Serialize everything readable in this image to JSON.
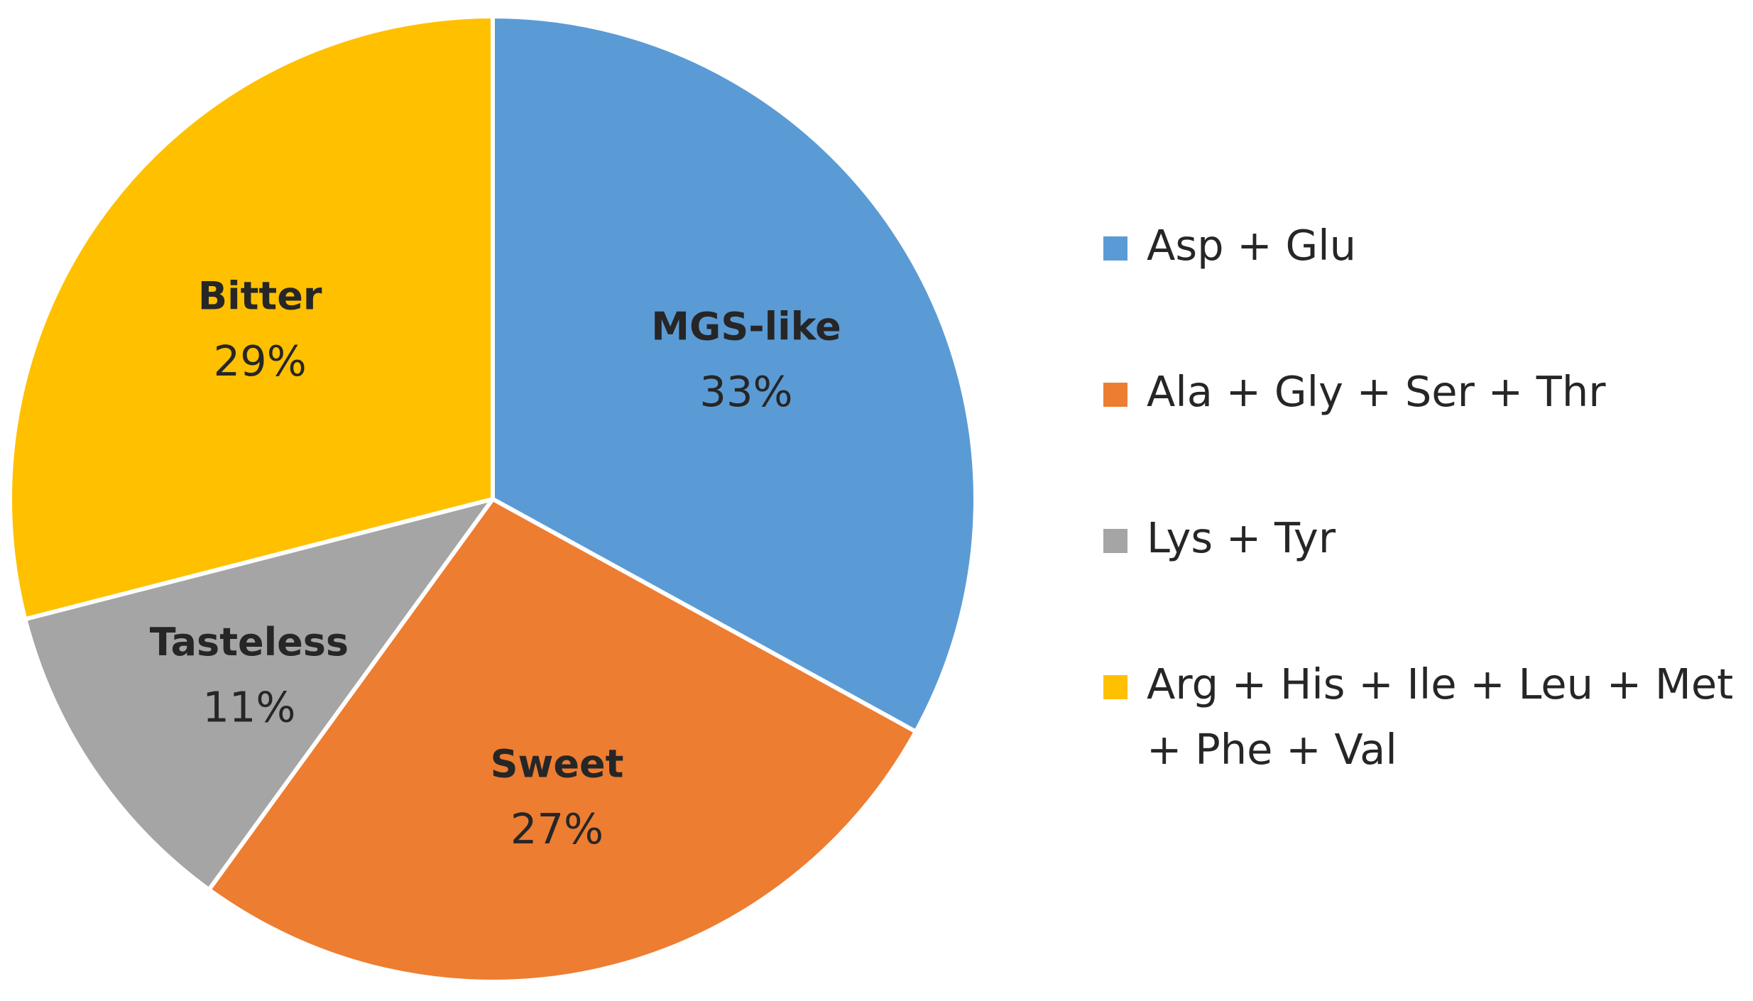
{
  "chart_data": {
    "type": "pie",
    "title": "",
    "slices": [
      {
        "name": "MGS-like",
        "value": 33,
        "percent_label": "33%",
        "legend": "Asp + Glu",
        "color": "#5B9BD5"
      },
      {
        "name": "Sweet",
        "value": 27,
        "percent_label": "27%",
        "legend": "Ala + Gly + Ser + Thr",
        "color": "#ED7D31"
      },
      {
        "name": "Tasteless",
        "value": 11,
        "percent_label": "11%",
        "legend": "Lys + Tyr",
        "color": "#A5A5A5"
      },
      {
        "name": "Bitter",
        "value": 29,
        "percent_label": "29%",
        "legend": "Arg + His + Ile + Leu + Met + Phe + Val",
        "color": "#FFC000"
      }
    ],
    "start_angle": "12 o'clock",
    "direction": "clockwise",
    "legend_position": "right"
  }
}
